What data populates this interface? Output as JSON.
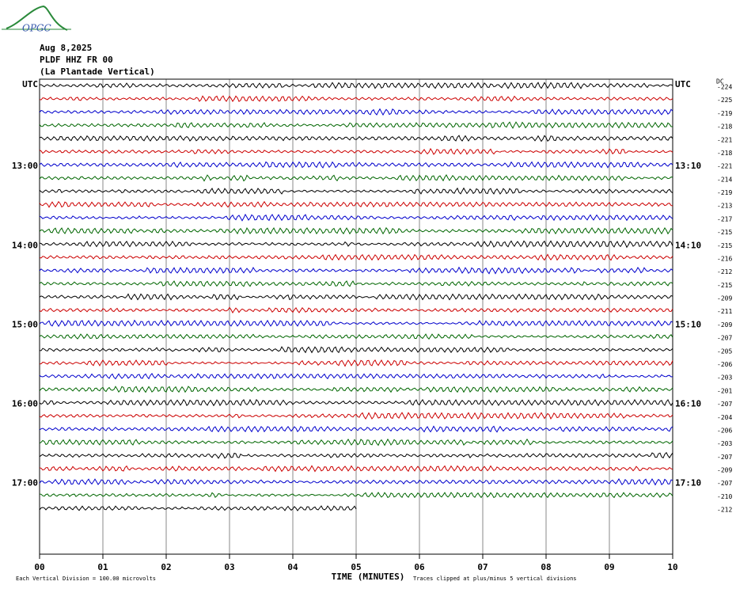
{
  "chart_data": {
    "type": "helicorder",
    "logo": "OPGC",
    "title": "Aug 8,2025",
    "station": "PLDF HHZ FR 00",
    "subtitle": "(La Plantade Vertical)",
    "dc_header": "DC",
    "colors": [
      "#000000",
      "#cc0000",
      "#0000cc",
      "#006600"
    ],
    "dc": [
      -224,
      -225,
      -219,
      -218,
      -221,
      -218,
      -221,
      -214,
      -219,
      -213,
      -217,
      -215,
      -215,
      -216,
      -212,
      -215,
      -209,
      -211,
      -209,
      -207,
      -205,
      -206,
      -203,
      -201,
      -207,
      -204,
      -206,
      -203,
      -207,
      -209,
      -207,
      -210,
      -212
    ],
    "left_labels": [
      "UTC",
      null,
      null,
      null,
      null,
      null,
      "13:00",
      null,
      null,
      null,
      null,
      null,
      "14:00",
      null,
      null,
      null,
      null,
      null,
      "15:00",
      null,
      null,
      null,
      null,
      null,
      "16:00",
      null,
      null,
      null,
      null,
      null,
      "17:00",
      null,
      null
    ],
    "right_labels": [
      "UTC",
      null,
      null,
      null,
      null,
      null,
      "13:10",
      null,
      null,
      null,
      null,
      null,
      "14:10",
      null,
      null,
      null,
      null,
      null,
      "15:10",
      null,
      null,
      null,
      null,
      null,
      "16:10",
      null,
      null,
      null,
      null,
      null,
      "17:10",
      null,
      null
    ],
    "last_trace_end": 5,
    "xlim": [
      0,
      10
    ],
    "xticks": [
      {
        "value": 0,
        "label": "00"
      },
      {
        "value": 1,
        "label": "01"
      },
      {
        "value": 2,
        "label": "02"
      },
      {
        "value": 3,
        "label": "03"
      },
      {
        "value": 4,
        "label": "04"
      },
      {
        "value": 5,
        "label": "05"
      },
      {
        "value": 6,
        "label": "06"
      },
      {
        "value": 7,
        "label": "07"
      },
      {
        "value": 8,
        "label": "08"
      },
      {
        "value": 9,
        "label": "09"
      },
      {
        "value": 10,
        "label": "10"
      }
    ],
    "xlabel": "TIME (MINUTES)",
    "scale_note": "Each Vertical Division =  100.00 microvolts",
    "clip_note": "Traces clipped at plus/minus 5 vertical divisions"
  }
}
